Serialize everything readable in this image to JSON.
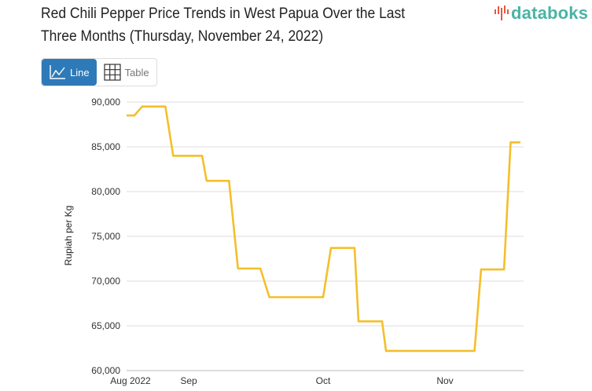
{
  "title": "Red Chili Pepper Price Trends in West Papua Over the Last Three Months (Thursday, November 24, 2022)",
  "logo": {
    "text": "databoks",
    "icon": "bars-logo-icon",
    "color": "#4ab3a6",
    "accent": "#e8563f"
  },
  "view_toggle": {
    "line_label": "Line",
    "line_icon": "line-chart-icon",
    "table_label": "Table",
    "table_icon": "table-grid-icon",
    "active": "Line",
    "active_color": "#2e7ab8"
  },
  "chart_data": {
    "type": "line",
    "title": "Red Chili Pepper Price Trends in West Papua Over the Last Three Months (Thursday, November 24, 2022)",
    "xlabel": "",
    "ylabel": "Rupiah per Kg",
    "ylim": [
      60000,
      90000
    ],
    "yticks": [
      60000,
      65000,
      70000,
      75000,
      80000,
      85000,
      90000
    ],
    "ytick_labels": [
      "60,000",
      "65,000",
      "70,000",
      "75,000",
      "80,000",
      "85,000",
      "90,000"
    ],
    "xticks": [
      {
        "date": "2022-08-24",
        "label": "Aug 2022"
      },
      {
        "date": "2022-09-01",
        "label": "Sep"
      },
      {
        "date": "2022-10-01",
        "label": "Oct"
      },
      {
        "date": "2022-11-01",
        "label": "Nov"
      }
    ],
    "grid": true,
    "line_color": "#f4bf2a",
    "series": [
      {
        "points": [
          [
            "2022-08-24",
            88500
          ],
          [
            "2022-08-25",
            88500
          ],
          [
            "2022-08-26",
            89500
          ],
          [
            "2022-08-29",
            89500
          ],
          [
            "2022-08-30",
            84000
          ],
          [
            "2022-09-04",
            84000
          ],
          [
            "2022-09-05",
            81200
          ],
          [
            "2022-09-10",
            81200
          ],
          [
            "2022-09-12",
            71400
          ],
          [
            "2022-09-17",
            71400
          ],
          [
            "2022-09-19",
            68200
          ],
          [
            "2022-10-01",
            68200
          ],
          [
            "2022-10-03",
            73700
          ],
          [
            "2022-10-09",
            73700
          ],
          [
            "2022-10-10",
            65500
          ],
          [
            "2022-10-16",
            65500
          ],
          [
            "2022-10-17",
            62200
          ],
          [
            "2022-11-10",
            62200
          ],
          [
            "2022-11-12",
            71300
          ],
          [
            "2022-11-19",
            71300
          ],
          [
            "2022-11-21",
            85500
          ],
          [
            "2022-11-24",
            85500
          ]
        ]
      }
    ]
  }
}
